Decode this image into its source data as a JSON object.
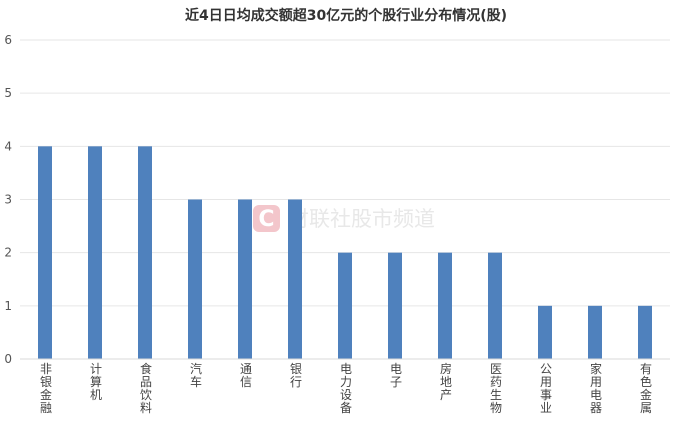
{
  "chart_data": {
    "type": "bar",
    "title": "近4日日均成交额超30亿元的个股行业分布情况(股)",
    "categories": [
      "非银金融",
      "计算机",
      "食品饮料",
      "汽车",
      "通信",
      "银行",
      "电力设备",
      "电子",
      "房地产",
      "医药生物",
      "公用事业",
      "家用电器",
      "有色金属"
    ],
    "values": [
      4,
      4,
      4,
      3,
      3,
      3,
      2,
      2,
      2,
      2,
      1,
      1,
      1
    ],
    "ylim": [
      0,
      6
    ],
    "yticks": [
      "0",
      "1",
      "2",
      "3",
      "4",
      "5",
      "6"
    ],
    "xlabel": "",
    "ylabel": "",
    "grid": true,
    "bar_color": "#4f81bd"
  },
  "watermark": {
    "logo_letter": "C",
    "text": "财联社股市频道",
    "color": "#f3c6cb"
  }
}
